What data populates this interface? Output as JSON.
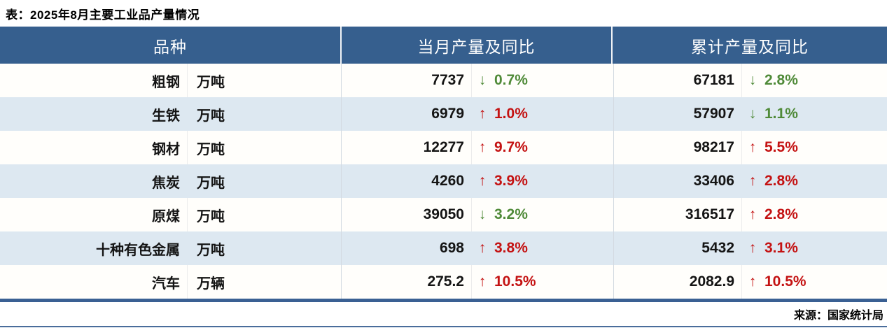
{
  "chart_data": {
    "type": "table",
    "title": "表：2025年8月主要工业品产量情况",
    "columns": [
      "品种",
      "当月产量及同比",
      "累计产量及同比"
    ],
    "rows": [
      {
        "name": "粗钢",
        "unit": "万吨",
        "month_value": "7737",
        "month_direction": "down",
        "month_yoy_pct": "0.7%",
        "cum_value": "67181",
        "cum_direction": "down",
        "cum_yoy_pct": "2.8%"
      },
      {
        "name": "生铁",
        "unit": "万吨",
        "month_value": "6979",
        "month_direction": "up",
        "month_yoy_pct": "1.0%",
        "cum_value": "57907",
        "cum_direction": "down",
        "cum_yoy_pct": "1.1%"
      },
      {
        "name": "钢材",
        "unit": "万吨",
        "month_value": "12277",
        "month_direction": "up",
        "month_yoy_pct": "9.7%",
        "cum_value": "98217",
        "cum_direction": "up",
        "cum_yoy_pct": "5.5%"
      },
      {
        "name": "焦炭",
        "unit": "万吨",
        "month_value": "4260",
        "month_direction": "up",
        "month_yoy_pct": "3.9%",
        "cum_value": "33406",
        "cum_direction": "up",
        "cum_yoy_pct": "2.8%"
      },
      {
        "name": "原煤",
        "unit": "万吨",
        "month_value": "39050",
        "month_direction": "down",
        "month_yoy_pct": "3.2%",
        "cum_value": "316517",
        "cum_direction": "up",
        "cum_yoy_pct": "2.8%"
      },
      {
        "name": "十种有色金属",
        "unit": "万吨",
        "month_value": "698",
        "month_direction": "up",
        "month_yoy_pct": "3.8%",
        "cum_value": "5432",
        "cum_direction": "up",
        "cum_yoy_pct": "3.1%"
      },
      {
        "name": "汽车",
        "unit": "万辆",
        "month_value": "275.2",
        "month_direction": "up",
        "month_yoy_pct": "10.5%",
        "cum_value": "2082.9",
        "cum_direction": "up",
        "cum_yoy_pct": "10.5%"
      }
    ],
    "source": "来源：国家统计局",
    "layout": {
      "zebra_striping": true,
      "header_position": "top"
    }
  },
  "icons": {
    "up": "↑",
    "down": "↓"
  },
  "colors": {
    "header_bg": "#365f8e",
    "row_alt_bg": "#dde8f1",
    "increase_red": "#c41212",
    "decrease_green": "#4f8a38"
  }
}
